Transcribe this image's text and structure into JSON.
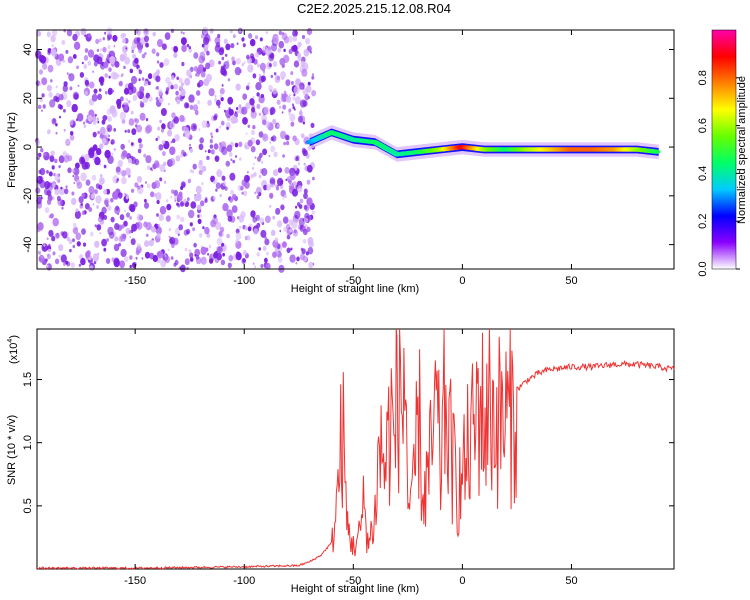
{
  "page": {
    "title": "C2E2.2025.215.12.08.R04"
  },
  "chart_data": [
    {
      "id": "spectrogram",
      "type": "heatmap",
      "title": "C2E2.2025.215.12.08.R04",
      "xlabel": "Height of straight line (km)",
      "ylabel": "Frequency (Hz)",
      "xlim": [
        -195,
        97
      ],
      "ylim": [
        -50,
        48
      ],
      "x_ticks": [
        -150,
        -100,
        -50,
        0,
        50
      ],
      "x_tick_labels": [
        "-150",
        "-100",
        "-50",
        "0",
        "50"
      ],
      "y_ticks": [
        -40,
        -20,
        0,
        20,
        40
      ],
      "y_tick_labels": [
        "-40",
        "-20",
        "0",
        "20",
        "40"
      ],
      "colorbar": {
        "label": "Normalized spectral amplitude",
        "range": [
          0,
          1
        ],
        "ticks": [
          0.0,
          0.2,
          0.4,
          0.6,
          0.8
        ],
        "tick_labels": [
          "0.0",
          "0.2",
          "0.4",
          "0.6",
          "0.8"
        ],
        "colormap": [
          "#ffffff",
          "#8a00ff",
          "#0000ff",
          "#00ccff",
          "#00ff66",
          "#66ff00",
          "#ffff00",
          "#ff8000",
          "#ff0000",
          "#ff00aa"
        ]
      },
      "ridge_track": [
        {
          "x": -70,
          "y": 2,
          "amp": 0.3
        },
        {
          "x": -60,
          "y": 6,
          "amp": 0.45
        },
        {
          "x": -50,
          "y": 3,
          "amp": 0.4
        },
        {
          "x": -40,
          "y": 2,
          "amp": 0.45
        },
        {
          "x": -30,
          "y": -3,
          "amp": 0.4
        },
        {
          "x": -20,
          "y": -2,
          "amp": 0.45
        },
        {
          "x": -10,
          "y": -1,
          "amp": 0.6
        },
        {
          "x": 0,
          "y": 0,
          "amp": 0.9
        },
        {
          "x": 10,
          "y": -1,
          "amp": 0.6
        },
        {
          "x": 20,
          "y": -1,
          "amp": 0.45
        },
        {
          "x": 30,
          "y": -1,
          "amp": 0.6
        },
        {
          "x": 40,
          "y": -1,
          "amp": 0.7
        },
        {
          "x": 50,
          "y": -1,
          "amp": 0.8
        },
        {
          "x": 60,
          "y": -1,
          "amp": 0.8
        },
        {
          "x": 70,
          "y": -1,
          "amp": 0.75
        },
        {
          "x": 80,
          "y": -1,
          "amp": 0.6
        },
        {
          "x": 90,
          "y": -2,
          "amp": 0.45
        }
      ],
      "noise_region_x": [
        -195,
        -75
      ]
    },
    {
      "id": "snr",
      "type": "line",
      "xlabel": "Height of straight line (km)",
      "ylabel": "SNR (10 * v/v)",
      "y_multiplier_label": "(x10",
      "y_multiplier_exp": "4",
      "y_multiplier_close": ")",
      "xlim": [
        -195,
        97
      ],
      "ylim": [
        0,
        1.9
      ],
      "x_ticks": [
        -150,
        -100,
        -50,
        0,
        50
      ],
      "x_tick_labels": [
        "-150",
        "-100",
        "-50",
        "0",
        "50"
      ],
      "y_ticks": [
        0.5,
        1.0,
        1.5
      ],
      "y_tick_labels": [
        "0.5",
        "1.0",
        "1.5"
      ],
      "series": [
        {
          "color": "#ee3333",
          "x": [
            -195,
            -150,
            -100,
            -75,
            -70,
            -65,
            -60,
            -57,
            -55,
            -53,
            -50,
            -47,
            -45,
            -43,
            -40,
            -38,
            -35,
            -33,
            -31,
            -30,
            -28,
            -26,
            -25,
            -23,
            -20,
            -18,
            -15,
            -12,
            -10,
            -8,
            -5,
            -2,
            0,
            2,
            5,
            8,
            10,
            12,
            15,
            18,
            20,
            25,
            30,
            35,
            40,
            50,
            60,
            70,
            80,
            90,
            97
          ],
          "y": [
            0.0,
            0.0,
            0.01,
            0.02,
            0.05,
            0.1,
            0.2,
            0.7,
            1.3,
            0.4,
            0.2,
            0.3,
            0.6,
            0.2,
            0.5,
            1.1,
            0.9,
            1.4,
            1.05,
            1.9,
            1.4,
            1.8,
            0.6,
            0.5,
            1.4,
            0.6,
            0.9,
            1.4,
            0.9,
            1.5,
            1.0,
            0.7,
            0.8,
            1.0,
            1.2,
            1.55,
            1.25,
            1.5,
            1.3,
            1.35,
            1.35,
            1.42,
            1.5,
            1.55,
            1.58,
            1.6,
            1.6,
            1.62,
            1.62,
            1.6,
            1.58
          ]
        }
      ]
    }
  ]
}
